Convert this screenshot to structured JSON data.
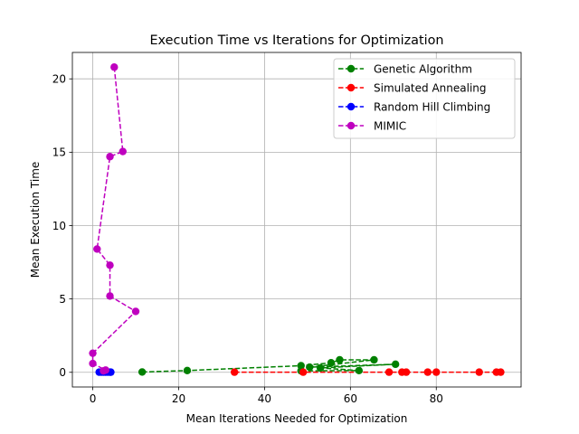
{
  "chart_data": {
    "type": "line",
    "title": "Execution Time vs Iterations for Optimization",
    "xlabel": "Mean Iterations Needed for Optimization",
    "ylabel": "Mean Execution Time",
    "xlim": [
      -4.75,
      99.75
    ],
    "ylim": [
      -1.0,
      21.8
    ],
    "xticks": [
      0,
      20,
      40,
      60,
      80
    ],
    "yticks": [
      0,
      5,
      10,
      15,
      20
    ],
    "grid": true,
    "legend_position": "top-right",
    "line_style": "dashed",
    "marker": "circle",
    "series": [
      {
        "name": "Genetic Algorithm",
        "color": "#008000",
        "points": [
          [
            11.5,
            0.02
          ],
          [
            22.0,
            0.12
          ],
          [
            48.5,
            0.45
          ],
          [
            55.5,
            0.65
          ],
          [
            57.5,
            0.85
          ],
          [
            65.5,
            0.85
          ],
          [
            50.5,
            0.35
          ],
          [
            70.5,
            0.55
          ],
          [
            53.0,
            0.3
          ],
          [
            62.0,
            0.12
          ],
          [
            48.5,
            0.1
          ]
        ]
      },
      {
        "name": "Simulated Annealing",
        "color": "#ff0000",
        "points": [
          [
            33.0,
            0.01
          ],
          [
            49.0,
            0.01
          ],
          [
            69.0,
            0.01
          ],
          [
            72.0,
            0.01
          ],
          [
            73.0,
            0.01
          ],
          [
            78.0,
            0.01
          ],
          [
            80.0,
            0.01
          ],
          [
            90.0,
            0.01
          ],
          [
            94.0,
            0.01
          ],
          [
            95.0,
            0.01
          ]
        ]
      },
      {
        "name": "Random Hill Climbing",
        "color": "#0000ff",
        "points": [
          [
            1.5,
            0.01
          ],
          [
            2.0,
            0.01
          ],
          [
            2.5,
            0.01
          ],
          [
            3.0,
            0.01
          ],
          [
            3.5,
            0.01
          ],
          [
            4.0,
            0.01
          ],
          [
            4.2,
            0.01
          ]
        ]
      },
      {
        "name": "MIMIC",
        "color": "#bf00bf",
        "points": [
          [
            5.0,
            20.8
          ],
          [
            7.0,
            15.05
          ],
          [
            4.0,
            14.7
          ],
          [
            1.0,
            8.4
          ],
          [
            4.0,
            7.3
          ],
          [
            4.0,
            5.2
          ],
          [
            10.0,
            4.15
          ],
          [
            0.0,
            1.3
          ],
          [
            0.0,
            0.6
          ],
          [
            3.0,
            0.15
          ],
          [
            2.5,
            0.1
          ]
        ]
      }
    ]
  }
}
